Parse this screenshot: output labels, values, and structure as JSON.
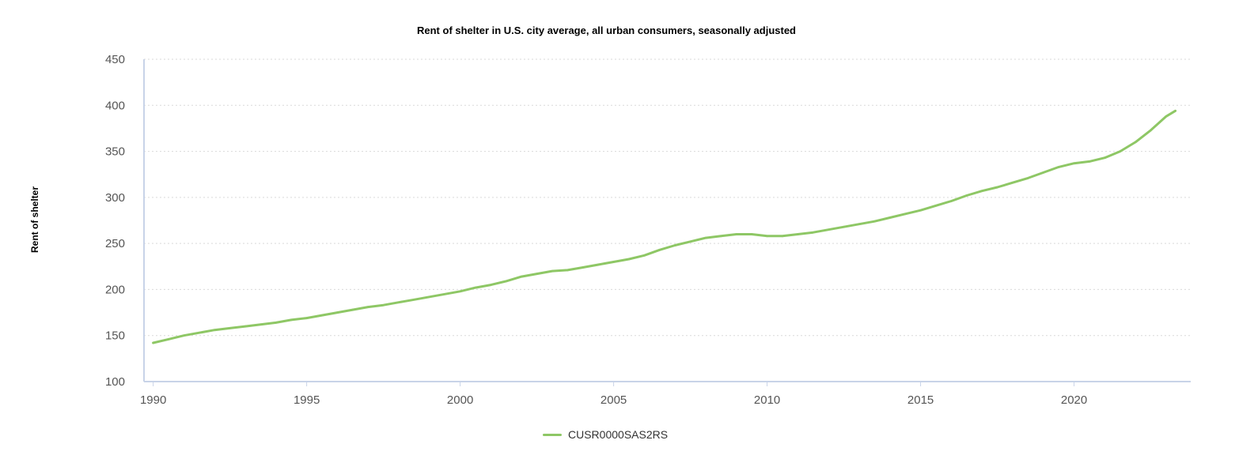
{
  "chart_data": {
    "type": "line",
    "title": "Rent of shelter in U.S. city average, all urban consumers, seasonally adjusted",
    "ylabel": "Rent of shelter",
    "xlabel": "",
    "xlim": [
      1989.7,
      2023.8
    ],
    "ylim": [
      100,
      450
    ],
    "x_ticks": [
      "1990",
      "1995",
      "2000",
      "2005",
      "2010",
      "2015",
      "2020"
    ],
    "y_ticks": [
      "100",
      "150",
      "200",
      "250",
      "300",
      "350",
      "400",
      "450"
    ],
    "grid": "horizontal dotted",
    "legend": "bottom-center",
    "series": [
      {
        "name": "CUSR0000SAS2RS",
        "color": "#8ec765",
        "x": [
          1990.0,
          1990.5,
          1991.0,
          1991.5,
          1992.0,
          1992.5,
          1993.0,
          1993.5,
          1994.0,
          1994.5,
          1995.0,
          1995.5,
          1996.0,
          1996.5,
          1997.0,
          1997.5,
          1998.0,
          1998.5,
          1999.0,
          1999.5,
          2000.0,
          2000.5,
          2001.0,
          2001.5,
          2002.0,
          2002.5,
          2003.0,
          2003.5,
          2004.0,
          2004.5,
          2005.0,
          2005.5,
          2006.0,
          2006.5,
          2007.0,
          2007.5,
          2008.0,
          2008.5,
          2009.0,
          2009.5,
          2010.0,
          2010.5,
          2011.0,
          2011.5,
          2012.0,
          2012.5,
          2013.0,
          2013.5,
          2014.0,
          2014.5,
          2015.0,
          2015.5,
          2016.0,
          2016.5,
          2017.0,
          2017.5,
          2018.0,
          2018.5,
          2019.0,
          2019.5,
          2020.0,
          2020.5,
          2021.0,
          2021.5,
          2022.0,
          2022.5,
          2023.0,
          2023.3
        ],
        "values": [
          142,
          146,
          150,
          153,
          156,
          158,
          160,
          162,
          164,
          167,
          169,
          172,
          175,
          178,
          181,
          183,
          186,
          189,
          192,
          195,
          198,
          202,
          205,
          209,
          214,
          217,
          220,
          221,
          224,
          227,
          230,
          233,
          237,
          243,
          248,
          252,
          256,
          258,
          260,
          260,
          258,
          258,
          260,
          262,
          265,
          268,
          271,
          274,
          278,
          282,
          286,
          291,
          296,
          302,
          307,
          311,
          316,
          321,
          327,
          333,
          337,
          339,
          343,
          350,
          360,
          373,
          388,
          394
        ]
      }
    ]
  }
}
